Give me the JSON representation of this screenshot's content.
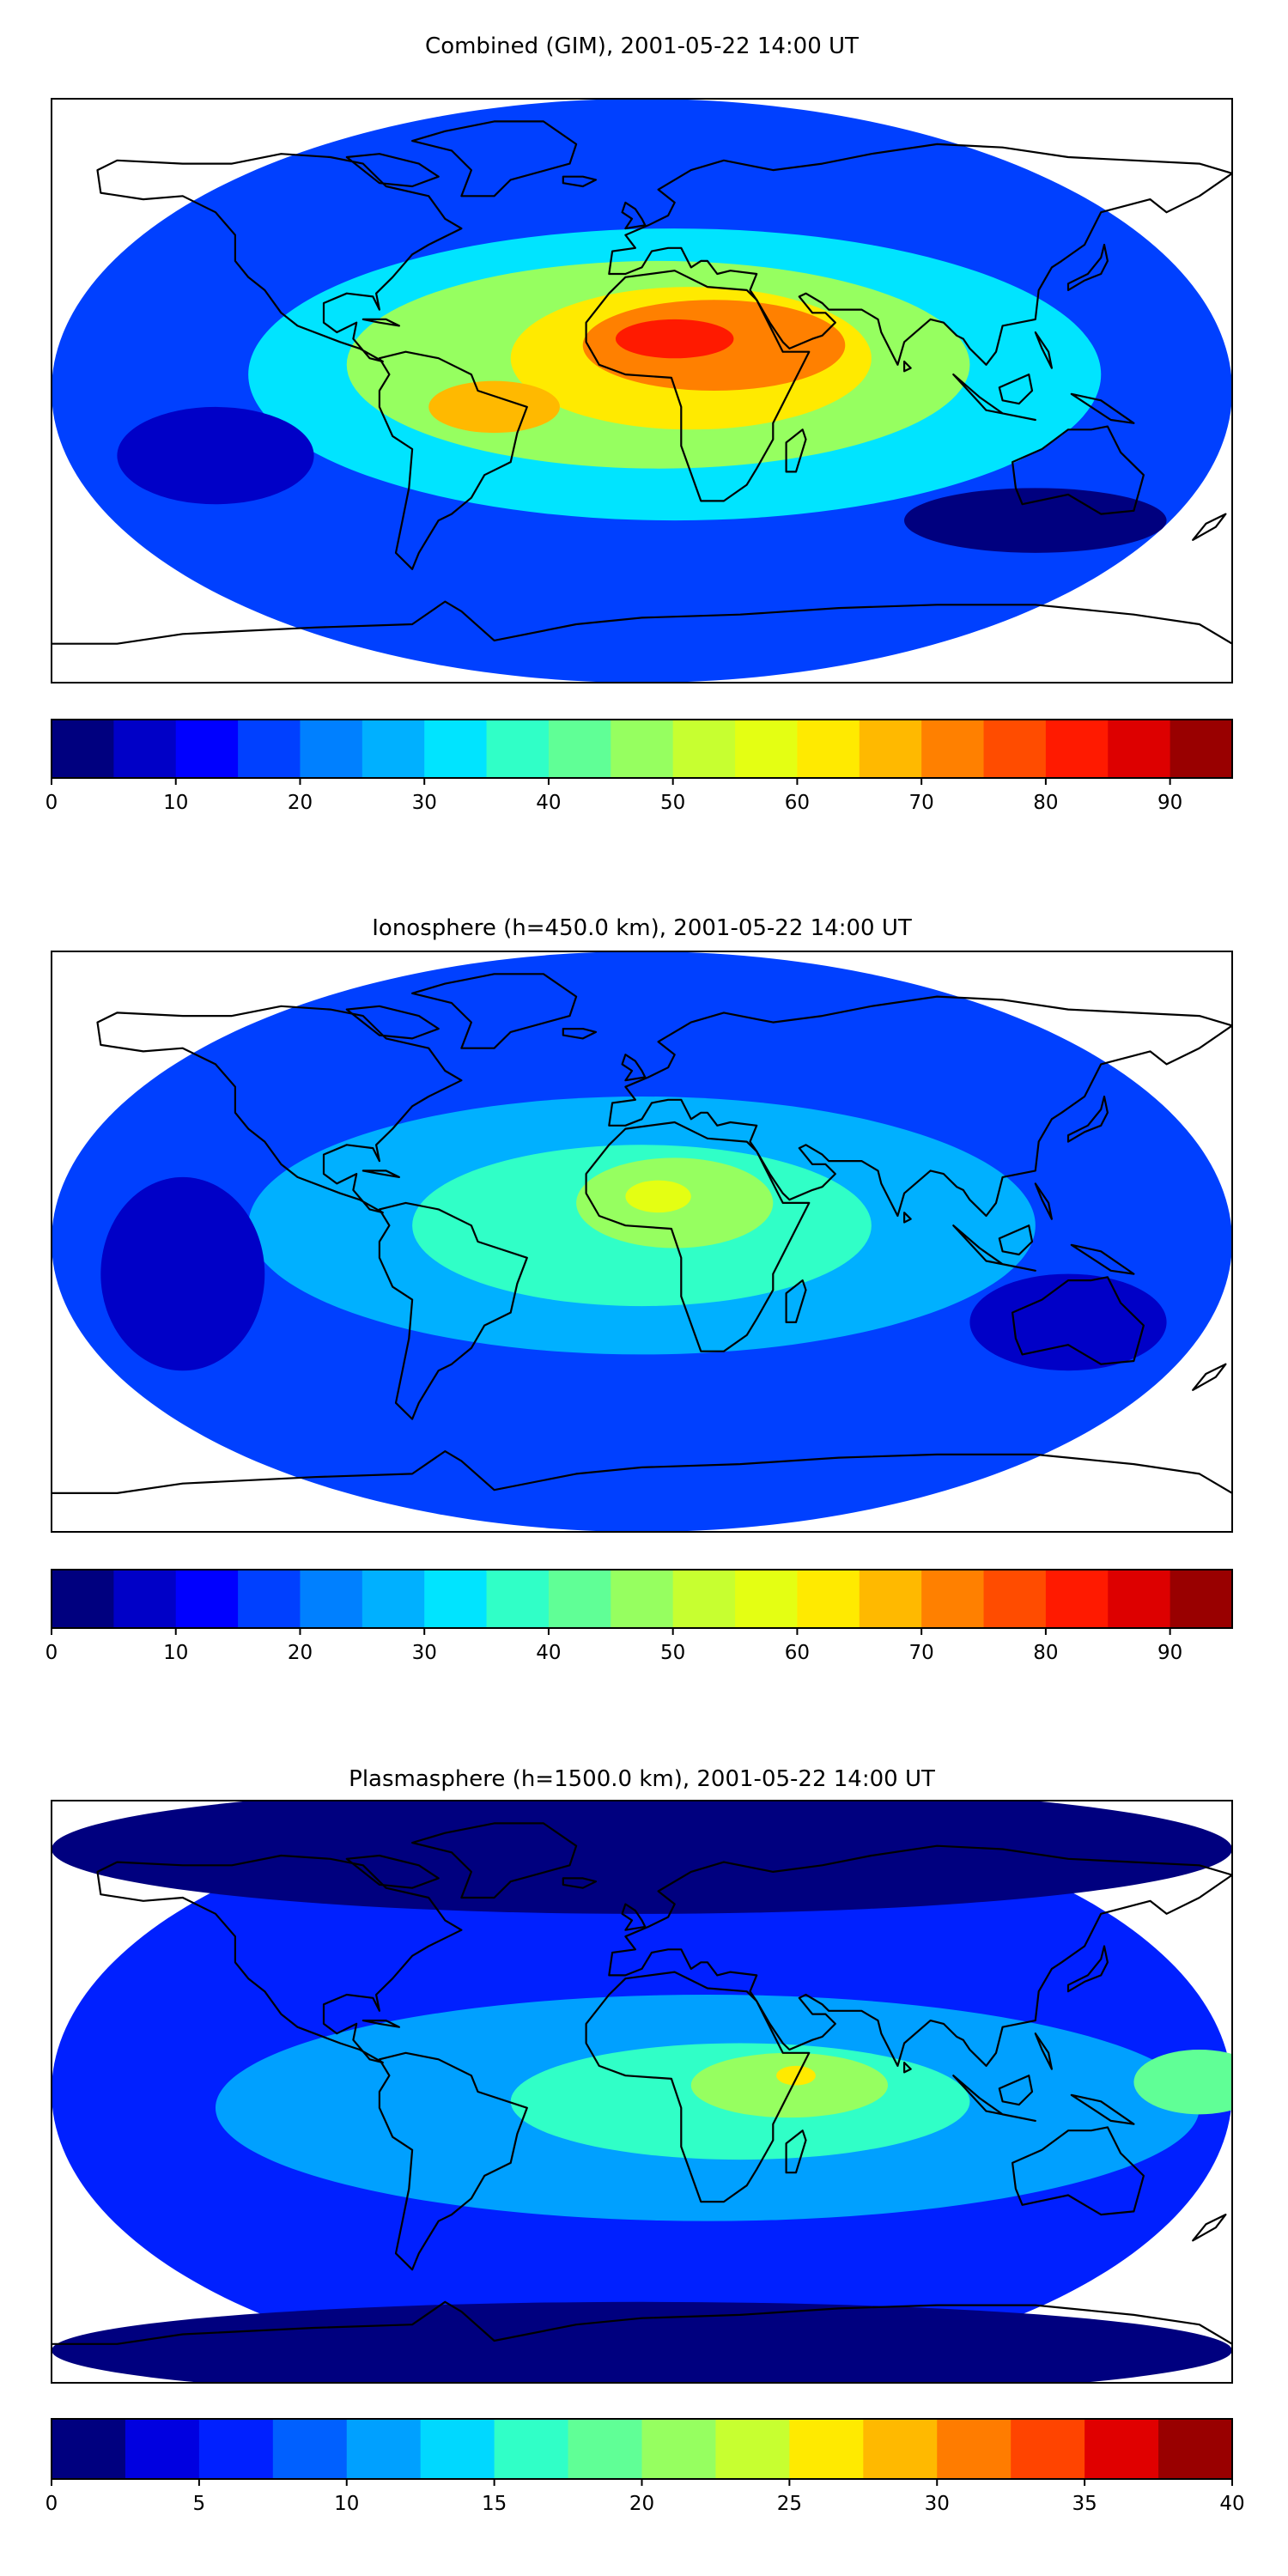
{
  "chart_data": [
    {
      "type": "heatmap",
      "title": "Combined (GIM), 2001-05-22 14:00 UT",
      "map": "world-equirectangular",
      "xlabel": "",
      "ylabel": "",
      "colorbar": {
        "min": 0,
        "max": 95,
        "step": 5,
        "ticks": [
          "0",
          "10",
          "20",
          "30",
          "40",
          "50",
          "60",
          "70",
          "80",
          "90"
        ],
        "colors": [
          "#00007f",
          "#0000c7",
          "#0000ff",
          "#0040ff",
          "#0080ff",
          "#00b0ff",
          "#00e4ff",
          "#30ffc7",
          "#60ff96",
          "#96ff60",
          "#c7ff30",
          "#e4ff13",
          "#ffea00",
          "#ffb900",
          "#ff8000",
          "#ff4c00",
          "#ff1a00",
          "#dd0000",
          "#990000"
        ]
      },
      "features": [
        {
          "label": "background",
          "lon": 0,
          "lat": 0,
          "level": 3,
          "rx": 180,
          "ry": 90
        },
        {
          "label": "enhancement band",
          "lon": 10,
          "lat": 5,
          "level": 6,
          "rx": 130,
          "ry": 45
        },
        {
          "label": "peak belt",
          "lon": 5,
          "lat": 8,
          "level": 9,
          "rx": 95,
          "ry": 32
        },
        {
          "label": "africa crest",
          "lon": 15,
          "lat": 10,
          "level": 12,
          "rx": 55,
          "ry": 22
        },
        {
          "label": "arabia crest",
          "lon": 22,
          "lat": 14,
          "level": 14,
          "rx": 40,
          "ry": 14
        },
        {
          "label": "maximum",
          "lon": 10,
          "lat": 16,
          "level": 16,
          "rx": 18,
          "ry": 6
        },
        {
          "label": "south america crest",
          "lon": -45,
          "lat": -5,
          "level": 13,
          "rx": 20,
          "ry": 8
        },
        {
          "label": "pacific low",
          "lon": -130,
          "lat": -20,
          "level": 1,
          "rx": 30,
          "ry": 15
        },
        {
          "label": "southern trough",
          "lon": 120,
          "lat": -40,
          "level": 0,
          "rx": 40,
          "ry": 10
        }
      ]
    },
    {
      "type": "heatmap",
      "title": "Ionosphere  (h=450.0 km), 2001-05-22 14:00 UT",
      "map": "world-equirectangular",
      "xlabel": "",
      "ylabel": "",
      "colorbar": {
        "min": 0,
        "max": 95,
        "step": 5,
        "ticks": [
          "0",
          "10",
          "20",
          "30",
          "40",
          "50",
          "60",
          "70",
          "80",
          "90"
        ],
        "colors": [
          "#00007f",
          "#0000c7",
          "#0000ff",
          "#0040ff",
          "#0080ff",
          "#00b0ff",
          "#00e4ff",
          "#30ffc7",
          "#60ff96",
          "#96ff60",
          "#c7ff30",
          "#e4ff13",
          "#ffea00",
          "#ffb900",
          "#ff8000",
          "#ff4c00",
          "#ff1a00",
          "#dd0000",
          "#990000"
        ]
      },
      "features": [
        {
          "label": "background",
          "lon": 0,
          "lat": 0,
          "level": 3,
          "rx": 180,
          "ry": 90
        },
        {
          "label": "enhancement band",
          "lon": 0,
          "lat": 5,
          "level": 5,
          "rx": 120,
          "ry": 40
        },
        {
          "label": "peak belt",
          "lon": 0,
          "lat": 5,
          "level": 7,
          "rx": 70,
          "ry": 25
        },
        {
          "label": "africa crest",
          "lon": 10,
          "lat": 12,
          "level": 9,
          "rx": 30,
          "ry": 14
        },
        {
          "label": "maximum",
          "lon": 5,
          "lat": 14,
          "level": 11,
          "rx": 10,
          "ry": 5
        },
        {
          "label": "pacific low",
          "lon": -140,
          "lat": -10,
          "level": 1,
          "rx": 25,
          "ry": 30
        },
        {
          "label": "australia low",
          "lon": 130,
          "lat": -25,
          "level": 1,
          "rx": 30,
          "ry": 15
        }
      ]
    },
    {
      "type": "heatmap",
      "title": "Plasmasphere (h=1500.0 km), 2001-05-22 14:00 UT",
      "map": "world-equirectangular",
      "xlabel": "",
      "ylabel": "",
      "colorbar": {
        "min": 0,
        "max": 40,
        "step": 2.5,
        "ticks": [
          "0",
          "5",
          "10",
          "15",
          "20",
          "25",
          "30",
          "35",
          "40"
        ],
        "colors": [
          "#00007f",
          "#0000e0",
          "#0020ff",
          "#0060ff",
          "#00a0ff",
          "#00d8ff",
          "#30ffc7",
          "#60ff96",
          "#96ff60",
          "#c7ff30",
          "#ffea00",
          "#ffb900",
          "#ff7c00",
          "#ff4400",
          "#e00000",
          "#990000"
        ]
      },
      "features": [
        {
          "label": "background",
          "lon": 0,
          "lat": 0,
          "level": 2,
          "rx": 180,
          "ry": 90
        },
        {
          "label": "equatorial band",
          "lon": 20,
          "lat": -5,
          "level": 4,
          "rx": 150,
          "ry": 35
        },
        {
          "label": "peak belt",
          "lon": 30,
          "lat": -3,
          "level": 6,
          "rx": 70,
          "ry": 18
        },
        {
          "label": "indian ocean crest",
          "lon": 45,
          "lat": 2,
          "level": 8,
          "rx": 30,
          "ry": 10
        },
        {
          "label": "maximum",
          "lon": 47,
          "lat": 5,
          "level": 10,
          "rx": 6,
          "ry": 3
        },
        {
          "label": "pacific crest",
          "lon": 170,
          "lat": 3,
          "level": 7,
          "rx": 20,
          "ry": 10
        },
        {
          "label": "polar low",
          "lon": 0,
          "lat": 75,
          "level": 0,
          "rx": 180,
          "ry": 20
        },
        {
          "label": "antarctic low",
          "lon": 0,
          "lat": -80,
          "level": 0,
          "rx": 180,
          "ry": 15
        }
      ]
    }
  ]
}
